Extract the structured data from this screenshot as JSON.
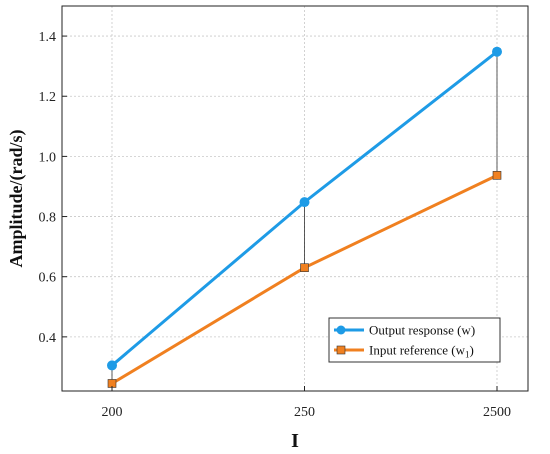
{
  "chart_data": {
    "type": "line",
    "categories": [
      "200",
      "250",
      "2500"
    ],
    "series": [
      {
        "name": "Output response (w)",
        "values": [
          0.305,
          0.848,
          1.348
        ],
        "color": "#1E9BE6",
        "marker": "circle"
      },
      {
        "name": "Input reference (w",
        "name_sub": "1",
        "name_suffix": ")",
        "values": [
          0.245,
          0.63,
          0.937
        ],
        "color": "#F08020",
        "marker": "square"
      }
    ],
    "xlabel": "I",
    "ylabel": "Amplitude/(rad/s)",
    "ylim": [
      0.22,
      1.5
    ],
    "yticks": [
      0.4,
      0.6,
      0.8,
      1.0,
      1.2,
      1.4
    ],
    "ytick_labels": [
      "0.4",
      "0.6",
      "0.8",
      "1.0",
      "1.2",
      "1.4"
    ],
    "grid": true,
    "legend_position": "lower-right",
    "connectors": true
  }
}
